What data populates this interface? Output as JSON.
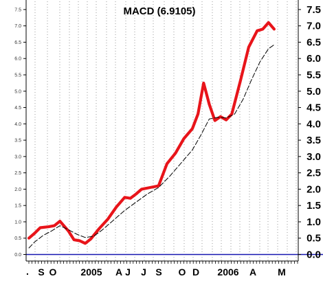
{
  "chart_data": {
    "type": "line",
    "title": "MACD (6.9105)",
    "xlabel": "",
    "ylabel": "",
    "ylim": [
      -0.2,
      7.75
    ],
    "y_ticks": [
      0.0,
      0.5,
      1.0,
      1.5,
      2.0,
      2.5,
      3.0,
      3.5,
      4.0,
      4.5,
      5.0,
      5.5,
      6.0,
      6.5,
      7.0,
      7.5
    ],
    "y_tick_labels": [
      "0.0",
      "0.5",
      "1.0",
      "1.5",
      "2.0",
      "2.5",
      "3.0",
      "3.5",
      "4.0",
      "4.5",
      "5.0",
      "5.5",
      "6.0",
      "6.5",
      "7.0",
      "7.5"
    ],
    "x_tick_labels": [
      "S",
      "O",
      "2005",
      "A",
      "J",
      "J",
      "S",
      "O",
      "D",
      "2006",
      "A",
      "M"
    ],
    "x_first_label": ".",
    "grid": true,
    "series": [
      {
        "color": "#e8141a",
        "style": "solid-thick",
        "x": [
          "2004-08-08",
          "2004-08-22",
          "2004-09-05",
          "2004-09-26",
          "2004-10-10",
          "2004-10-24",
          "2004-11-14",
          "2004-11-28",
          "2004-12-12",
          "2004-12-26",
          "2005-01-09",
          "2005-01-30",
          "2005-02-20",
          "2005-03-13",
          "2005-04-03",
          "2005-04-17",
          "2005-05-01",
          "2005-05-15",
          "2005-06-05",
          "2005-06-26",
          "2005-07-17",
          "2005-08-07",
          "2005-08-28",
          "2005-09-18",
          "2005-10-02",
          "2005-10-16",
          "2005-10-30",
          "2005-11-13",
          "2005-11-27",
          "2005-12-11",
          "2005-12-25",
          "2006-01-15",
          "2006-02-05",
          "2006-02-26",
          "2006-03-12",
          "2006-03-26",
          "2006-04-09"
        ],
        "values": [
          0.5,
          0.65,
          0.82,
          0.85,
          0.88,
          1.02,
          0.72,
          0.45,
          0.42,
          0.34,
          0.48,
          0.8,
          1.08,
          1.45,
          1.75,
          1.72,
          1.85,
          2.0,
          2.05,
          2.1,
          2.78,
          3.1,
          3.55,
          3.85,
          4.3,
          5.25,
          4.6,
          4.1,
          4.22,
          4.12,
          4.3,
          5.3,
          6.35,
          6.85,
          6.9,
          7.1,
          6.9
        ]
      },
      {
        "color": "#000000",
        "style": "dashed",
        "x": [
          "2004-08-08",
          "2004-08-22",
          "2004-09-12",
          "2004-10-03",
          "2004-10-24",
          "2004-11-14",
          "2004-12-05",
          "2004-12-26",
          "2005-01-16",
          "2005-02-06",
          "2005-03-06",
          "2005-04-03",
          "2005-05-01",
          "2005-05-29",
          "2005-06-26",
          "2005-07-24",
          "2005-08-21",
          "2005-09-18",
          "2005-10-09",
          "2005-10-30",
          "2005-11-20",
          "2005-12-11",
          "2006-01-01",
          "2006-01-22",
          "2006-02-12",
          "2006-03-05",
          "2006-03-26",
          "2006-04-09"
        ],
        "values": [
          0.2,
          0.38,
          0.58,
          0.72,
          0.88,
          0.76,
          0.62,
          0.52,
          0.56,
          0.75,
          1.05,
          1.35,
          1.6,
          1.85,
          2.05,
          2.4,
          2.8,
          3.2,
          3.65,
          4.15,
          4.2,
          4.18,
          4.3,
          4.75,
          5.35,
          5.9,
          6.3,
          6.42
        ]
      }
    ],
    "zero_line_color": "#1515b0"
  }
}
